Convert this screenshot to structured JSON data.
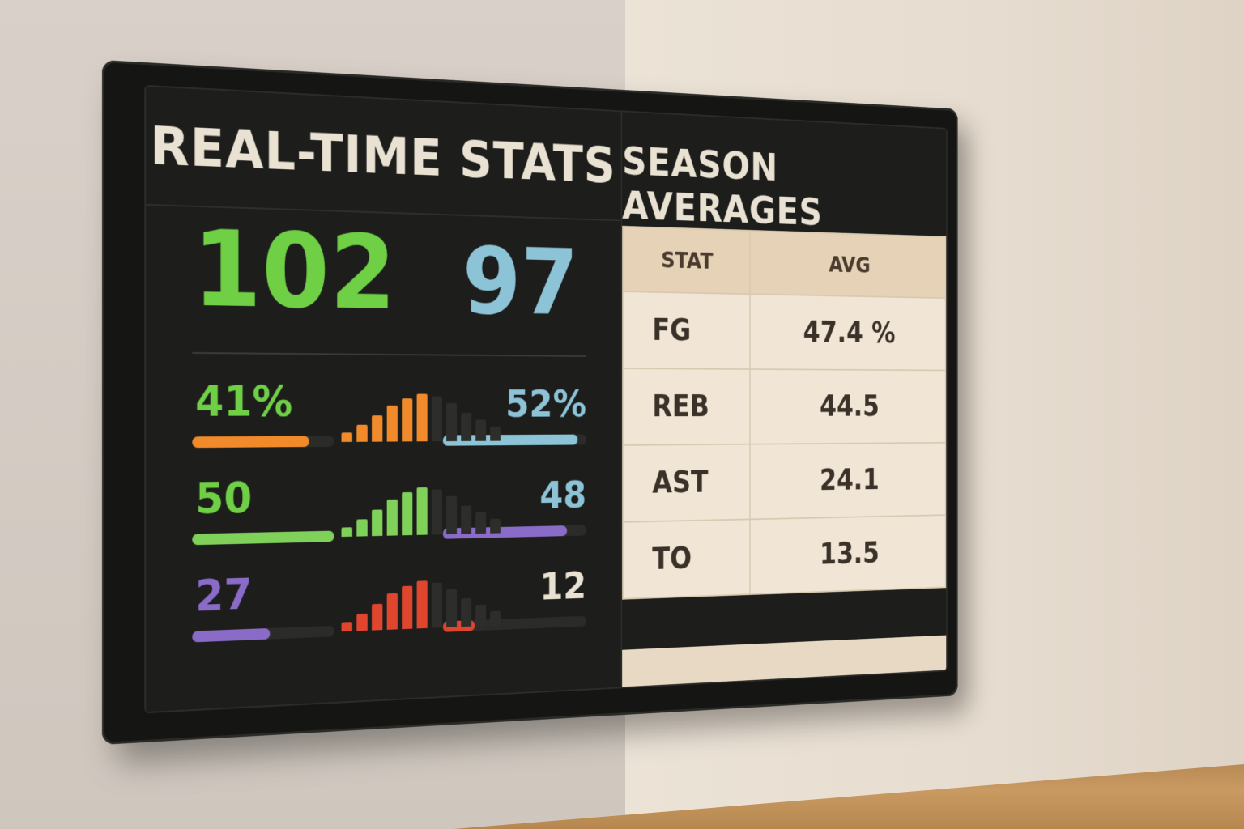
{
  "realtime": {
    "title": "REAL-TIME STATS",
    "score_home": "102",
    "score_away": "97",
    "rows": [
      {
        "left": "41%",
        "right": "52%",
        "left_color": "#6fcf45",
        "right_color": "#8cc3d6",
        "left_bar_color": "#f08a2a",
        "right_bar_color": "#8cc3d6",
        "left_level": 0.41,
        "right_level": 0.52,
        "mini_color": "#f08a2a"
      },
      {
        "left": "50",
        "right": "48",
        "left_color": "#6fcf45",
        "right_color": "#8cc3d6",
        "left_bar_color": "#7fd15a",
        "right_bar_color": "#8a6cc8",
        "left_level": 0.5,
        "right_level": 0.48,
        "mini_color": "#7fd15a"
      },
      {
        "left": "27",
        "right": "12",
        "left_color": "#8a6cc8",
        "right_color": "#e9e1d2",
        "left_bar_color": "#8a6cc8",
        "right_bar_color": "#e0452e",
        "left_level": 0.27,
        "right_level": 0.12,
        "mini_color": "#e0452e"
      }
    ]
  },
  "season": {
    "title": "SEASON AVERAGES",
    "headers": [
      "STAT",
      "AVG"
    ],
    "rows": [
      {
        "stat": "FG",
        "avg": "47.4 %"
      },
      {
        "stat": "REB",
        "avg": "44.5"
      },
      {
        "stat": "AST",
        "avg": "24.1"
      },
      {
        "stat": "TO",
        "avg": "13.5"
      }
    ]
  }
}
